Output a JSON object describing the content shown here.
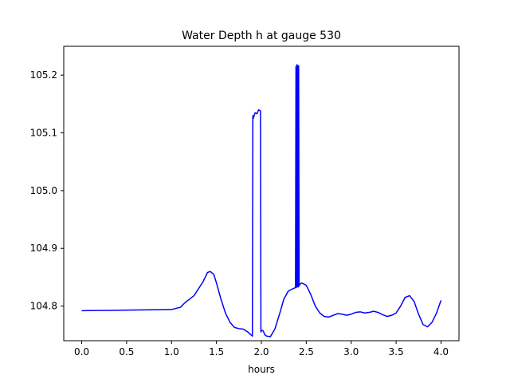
{
  "chart_data": {
    "type": "line",
    "title": "Water Depth h at gauge 530",
    "xlabel": "hours",
    "ylabel": "",
    "xlim": [
      -0.2,
      4.2
    ],
    "ylim": [
      104.74,
      105.25
    ],
    "xticks": [
      0.0,
      0.5,
      1.0,
      1.5,
      2.0,
      2.5,
      3.0,
      3.5,
      4.0
    ],
    "xtick_labels": [
      "0.0",
      "0.5",
      "1.0",
      "1.5",
      "2.0",
      "2.5",
      "3.0",
      "3.5",
      "4.0"
    ],
    "yticks": [
      104.8,
      104.9,
      105.0,
      105.1,
      105.2
    ],
    "ytick_labels": [
      "104.8",
      "104.9",
      "105.0",
      "105.1",
      "105.2"
    ],
    "grid": false,
    "series": [
      {
        "color": "#0000ff",
        "x": [
          0.0,
          1.0,
          1.1,
          1.15,
          1.2,
          1.25,
          1.3,
          1.35,
          1.4,
          1.43,
          1.47,
          1.5,
          1.55,
          1.6,
          1.65,
          1.7,
          1.75,
          1.8,
          1.85,
          1.9,
          1.905,
          1.91,
          1.93,
          1.95,
          1.97,
          1.99,
          1.995,
          2.0,
          2.02,
          2.04,
          2.06,
          2.1,
          2.15,
          2.2,
          2.25,
          2.3,
          2.35,
          2.38,
          2.385,
          2.39,
          2.395,
          2.4,
          2.405,
          2.41,
          2.415,
          2.42,
          2.425,
          2.43,
          2.45,
          2.5,
          2.55,
          2.6,
          2.65,
          2.7,
          2.75,
          2.8,
          2.85,
          2.9,
          2.95,
          3.0,
          3.05,
          3.1,
          3.15,
          3.2,
          3.25,
          3.3,
          3.35,
          3.4,
          3.45,
          3.5,
          3.55,
          3.6,
          3.65,
          3.7,
          3.75,
          3.8,
          3.85,
          3.9,
          3.95,
          4.0
        ],
        "y": [
          104.792,
          104.794,
          104.798,
          104.806,
          104.812,
          104.818,
          104.83,
          104.842,
          104.858,
          104.86,
          104.855,
          104.84,
          104.812,
          104.788,
          104.772,
          104.763,
          104.761,
          104.76,
          104.755,
          104.748,
          105.13,
          105.125,
          105.135,
          105.133,
          105.14,
          105.138,
          104.755,
          104.758,
          104.757,
          104.75,
          104.748,
          104.747,
          104.76,
          104.785,
          104.812,
          104.826,
          104.83,
          104.832,
          105.215,
          104.832,
          105.218,
          104.834,
          105.217,
          104.833,
          105.216,
          104.835,
          104.836,
          104.838,
          104.84,
          104.836,
          104.82,
          104.8,
          104.788,
          104.782,
          104.781,
          104.784,
          104.787,
          104.786,
          104.784,
          104.786,
          104.789,
          104.79,
          104.788,
          104.789,
          104.791,
          104.789,
          104.785,
          104.782,
          104.784,
          104.788,
          104.8,
          104.815,
          104.818,
          104.808,
          104.786,
          104.768,
          104.764,
          104.772,
          104.788,
          104.81
        ]
      }
    ]
  }
}
